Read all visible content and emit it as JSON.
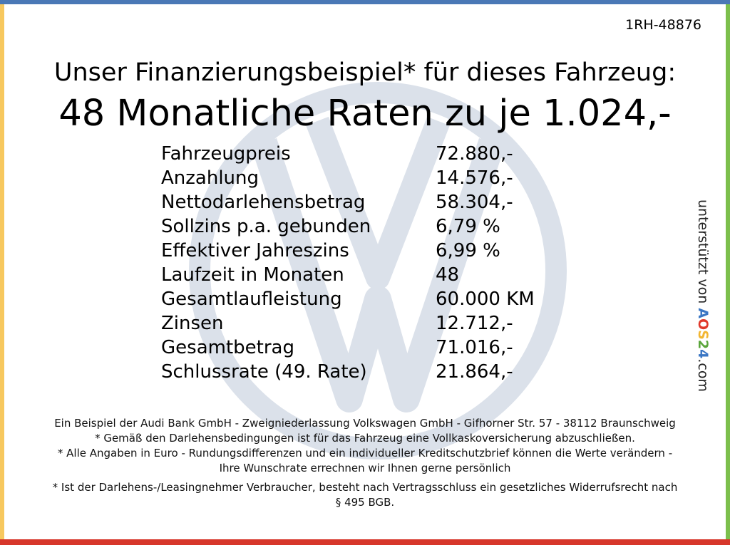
{
  "reference": "1RH-48876",
  "headline": "Unser Finanzierungsbeispiel* für dieses Fahrzeug:",
  "rate_line": "48 Monatliche Raten zu je 1.024,-",
  "rows": [
    {
      "label": "Fahrzeugpreis",
      "value": "72.880,-"
    },
    {
      "label": "Anzahlung",
      "value": "14.576,-"
    },
    {
      "label": "Nettodarlehensbetrag",
      "value": "58.304,-"
    },
    {
      "label": "Sollzins p.a. gebunden",
      "value": "6,79 %"
    },
    {
      "label": "Effektiver Jahreszins",
      "value": "6,99 %"
    },
    {
      "label": "Laufzeit in Monaten",
      "value": "48"
    },
    {
      "label": "Gesamtlaufleistung",
      "value": "60.000 KM"
    },
    {
      "label": "Zinsen",
      "value": "12.712,-"
    },
    {
      "label": "Gesamtbetrag",
      "value": "71.016,-"
    },
    {
      "label": "Schlussrate (49. Rate)",
      "value": "21.864,-"
    }
  ],
  "side": {
    "prefix": "unterstützt von ",
    "brand": [
      "A",
      "O",
      "S",
      "2",
      "4"
    ],
    "suffix": ".com"
  },
  "footer": {
    "line1": "Ein Beispiel der Audi Bank GmbH - Zweigniederlassung Volkswagen GmbH - Gifhorner Str. 57 - 38112 Braunschweig",
    "line2": "* Gemäß den Darlehensbedingungen ist für das Fahrzeug eine Vollkaskoversicherung abzuschließen.",
    "line3": "* Alle Angaben in Euro - Rundungsdifferenzen und ein individueller Kreditschutzbrief können die Werte verändern - Ihre Wunschrate errechnen wir Ihnen gerne persönlich",
    "line4": "* Ist der Darlehens-/Leasingnehmer Verbraucher, besteht nach Vertragsschluss ein gesetzliches Widerrufsrecht nach § 495 BGB."
  },
  "colors": {
    "top_bar": "#4a78b6",
    "bottom_bar": "#d7372b",
    "left_bar": "#f7c85e",
    "right_bar": "#7cbf4c",
    "watermark": "#cfd6e2"
  }
}
